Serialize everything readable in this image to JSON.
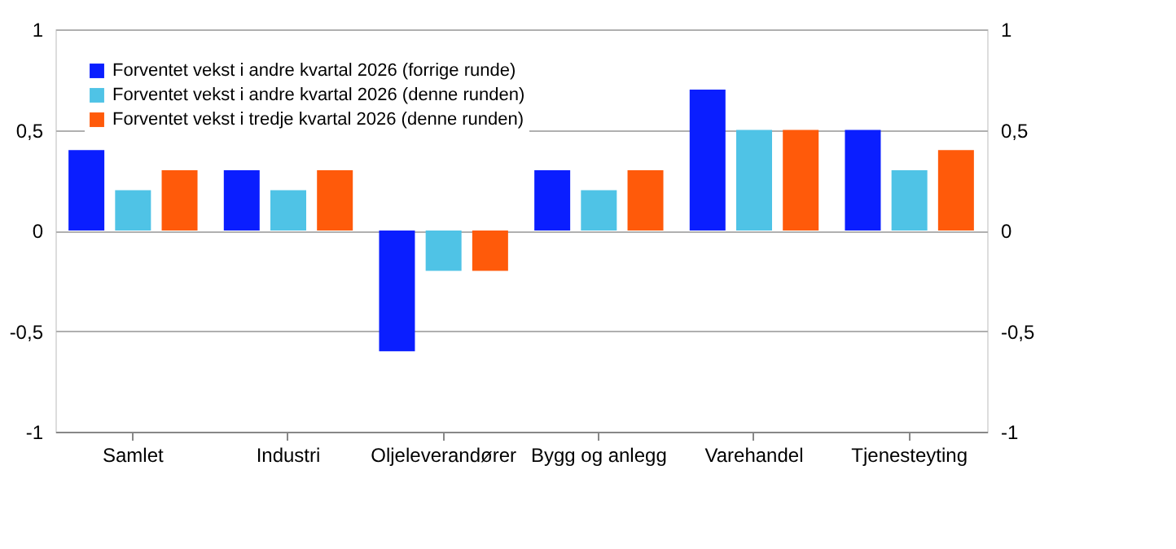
{
  "chart_data": {
    "type": "bar",
    "categories": [
      "Samlet",
      "Industri",
      "Oljeleverandører",
      "Bygg og anlegg",
      "Varehandel",
      "Tjenesteyting"
    ],
    "series": [
      {
        "name": "Forventet vekst i andre kvartal 2026 (forrige runde)",
        "color": "#0a1eff",
        "values": [
          0.4,
          0.3,
          -0.6,
          0.3,
          0.7,
          0.5
        ]
      },
      {
        "name": "Forventet vekst i andre kvartal 2026 (denne runden)",
        "color": "#4fc3e6",
        "values": [
          0.2,
          0.2,
          -0.2,
          0.2,
          0.5,
          0.3
        ]
      },
      {
        "name": "Forventet vekst i tredje kvartal 2026 (denne runden)",
        "color": "#ff5a0a",
        "values": [
          0.3,
          0.3,
          -0.2,
          0.3,
          0.5,
          0.4
        ]
      }
    ],
    "ylim": [
      -1,
      1
    ],
    "yticks": [
      -1,
      {
        "value": -0.5,
        "label": "-0,5"
      },
      0,
      {
        "value": 0.5,
        "label": "0,5"
      },
      1
    ],
    "y2lim": [
      -1,
      1
    ],
    "y2ticks": [
      -1,
      {
        "value": -0.5,
        "label": "-0,5"
      },
      0,
      {
        "value": 0.5,
        "label": "0,5"
      },
      1
    ],
    "grid": "y",
    "legend": "top left"
  }
}
